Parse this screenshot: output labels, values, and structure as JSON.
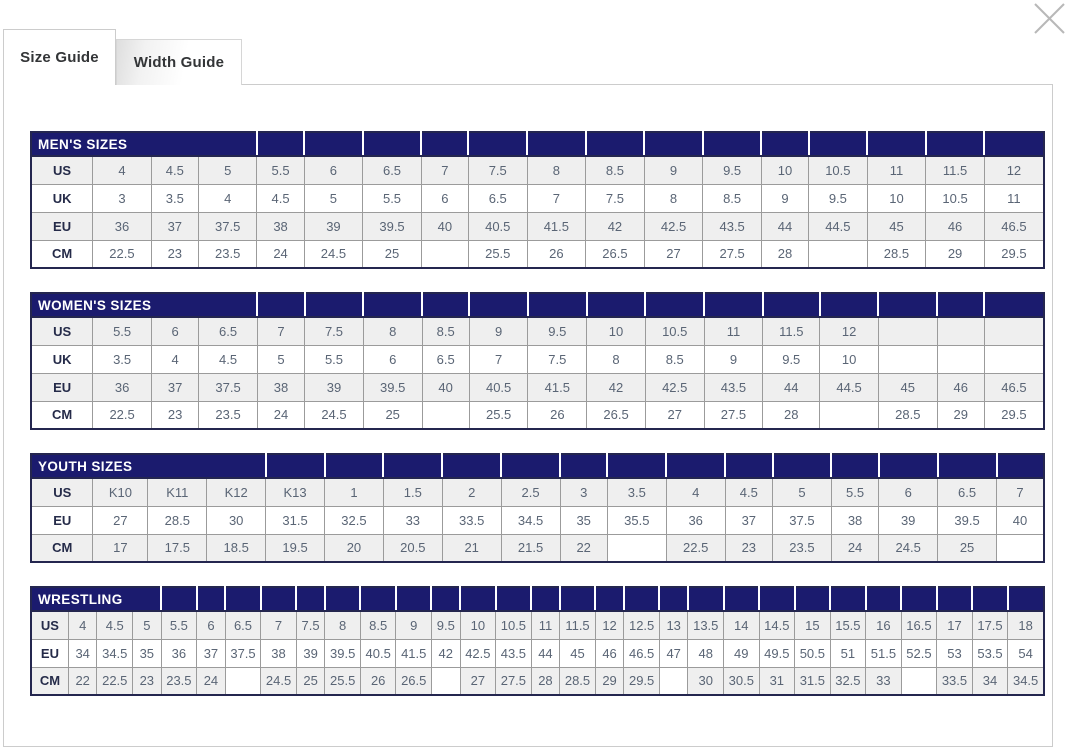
{
  "tabs": [
    {
      "label": "Size Guide",
      "active": true
    },
    {
      "label": "Width Guide",
      "active": false
    }
  ],
  "icons": {
    "close": "close-icon"
  },
  "colors": {
    "header_navy": "#1b1b6e",
    "row_stripe_gray": "#efefef",
    "cell_text": "#5a6575",
    "table_border": "#24264f",
    "close_gray": "#b8b8b8"
  },
  "tables": [
    {
      "title": "MEN'S SIZES",
      "rows": [
        {
          "label": "US",
          "values": [
            "4",
            "4.5",
            "5",
            "5.5",
            "6",
            "6.5",
            "7",
            "7.5",
            "8",
            "8.5",
            "9",
            "9.5",
            "10",
            "10.5",
            "11",
            "11.5",
            "12"
          ]
        },
        {
          "label": "UK",
          "values": [
            "3",
            "3.5",
            "4",
            "4.5",
            "5",
            "5.5",
            "6",
            "6.5",
            "7",
            "7.5",
            "8",
            "8.5",
            "9",
            "9.5",
            "10",
            "10.5",
            "11"
          ]
        },
        {
          "label": "EU",
          "values": [
            "36",
            "37",
            "37.5",
            "38",
            "39",
            "39.5",
            "40",
            "40.5",
            "41.5",
            "42",
            "42.5",
            "43.5",
            "44",
            "44.5",
            "45",
            "46",
            "46.5"
          ]
        },
        {
          "label": "CM",
          "values": [
            "22.5",
            "23",
            "23.5",
            "24",
            "24.5",
            "25",
            "",
            "25.5",
            "26",
            "26.5",
            "27",
            "27.5",
            "28",
            "",
            "28.5",
            "29",
            "29.5"
          ]
        }
      ]
    },
    {
      "title": "WOMEN'S SIZES",
      "rows": [
        {
          "label": "US",
          "values": [
            "5.5",
            "6",
            "6.5",
            "7",
            "7.5",
            "8",
            "8.5",
            "9",
            "9.5",
            "10",
            "10.5",
            "11",
            "11.5",
            "12",
            "",
            "",
            ""
          ]
        },
        {
          "label": "UK",
          "values": [
            "3.5",
            "4",
            "4.5",
            "5",
            "5.5",
            "6",
            "6.5",
            "7",
            "7.5",
            "8",
            "8.5",
            "9",
            "9.5",
            "10",
            "",
            "",
            ""
          ]
        },
        {
          "label": "EU",
          "values": [
            "36",
            "37",
            "37.5",
            "38",
            "39",
            "39.5",
            "40",
            "40.5",
            "41.5",
            "42",
            "42.5",
            "43.5",
            "44",
            "44.5",
            "45",
            "46",
            "46.5"
          ]
        },
        {
          "label": "CM",
          "values": [
            "22.5",
            "23",
            "23.5",
            "24",
            "24.5",
            "25",
            "",
            "25.5",
            "26",
            "26.5",
            "27",
            "27.5",
            "28",
            "",
            "28.5",
            "29",
            "29.5"
          ]
        }
      ]
    },
    {
      "title": "YOUTH SIZES",
      "rows": [
        {
          "label": "US",
          "values": [
            "K10",
            "K11",
            "K12",
            "K13",
            "1",
            "1.5",
            "2",
            "2.5",
            "3",
            "3.5",
            "4",
            "4.5",
            "5",
            "5.5",
            "6",
            "6.5",
            "7"
          ]
        },
        {
          "label": "EU",
          "values": [
            "27",
            "28.5",
            "30",
            "31.5",
            "32.5",
            "33",
            "33.5",
            "34.5",
            "35",
            "35.5",
            "36",
            "37",
            "37.5",
            "38",
            "39",
            "39.5",
            "40"
          ]
        },
        {
          "label": "CM",
          "values": [
            "17",
            "17.5",
            "18.5",
            "19.5",
            "20",
            "20.5",
            "21",
            "21.5",
            "22",
            "",
            "22.5",
            "23",
            "23.5",
            "24",
            "24.5",
            "25",
            ""
          ]
        }
      ]
    },
    {
      "title": "WRESTLING",
      "rows": [
        {
          "label": "US",
          "values": [
            "4",
            "4.5",
            "5",
            "5.5",
            "6",
            "6.5",
            "7",
            "7.5",
            "8",
            "8.5",
            "9",
            "9.5",
            "10",
            "10.5",
            "11",
            "11.5",
            "12",
            "12.5",
            "13",
            "13.5",
            "14",
            "14.5",
            "15",
            "15.5",
            "16",
            "16.5",
            "17",
            "17.5",
            "18"
          ]
        },
        {
          "label": "EU",
          "values": [
            "34",
            "34.5",
            "35",
            "36",
            "37",
            "37.5",
            "38",
            "39",
            "39.5",
            "40.5",
            "41.5",
            "42",
            "42.5",
            "43.5",
            "44",
            "45",
            "46",
            "46.5",
            "47",
            "48",
            "49",
            "49.5",
            "50.5",
            "51",
            "51.5",
            "52.5",
            "53",
            "53.5",
            "54"
          ]
        },
        {
          "label": "CM",
          "values": [
            "22",
            "22.5",
            "23",
            "23.5",
            "24",
            "",
            "24.5",
            "25",
            "25.5",
            "26",
            "26.5",
            "",
            "27",
            "27.5",
            "28",
            "28.5",
            "29",
            "29.5",
            "",
            "30",
            "30.5",
            "31",
            "31.5",
            "32.5",
            "33",
            "",
            "33.5",
            "34",
            "34.5"
          ]
        }
      ]
    }
  ]
}
